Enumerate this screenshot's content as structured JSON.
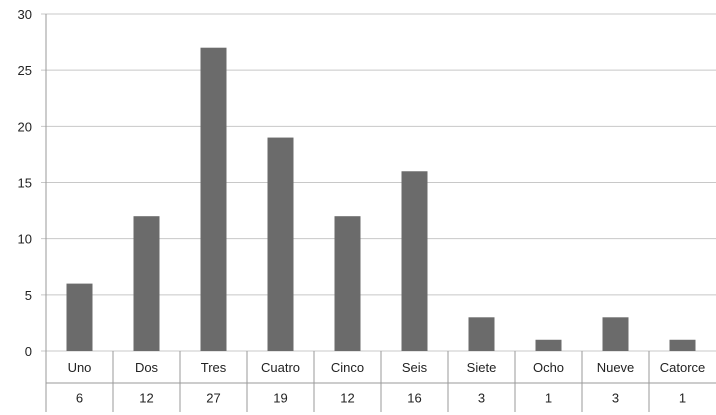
{
  "chart_data": {
    "type": "bar",
    "categories": [
      "Uno",
      "Dos",
      "Tres",
      "Cuatro",
      "Cinco",
      "Seis",
      "Siete",
      "Ocho",
      "Nueve",
      "Catorce"
    ],
    "values": [
      6,
      12,
      27,
      19,
      12,
      16,
      3,
      1,
      3,
      1
    ],
    "table_values": [
      "6",
      "12",
      "27",
      "19",
      "12",
      "16",
      "3",
      "1",
      "3",
      "1"
    ],
    "yticks": [
      "0",
      "5",
      "10",
      "15",
      "20",
      "25",
      "30"
    ],
    "ylim": [
      0,
      30
    ],
    "grid": true,
    "legend": "none",
    "bar_color": "#6b6b6b",
    "grid_color": "#c8c8c8"
  }
}
